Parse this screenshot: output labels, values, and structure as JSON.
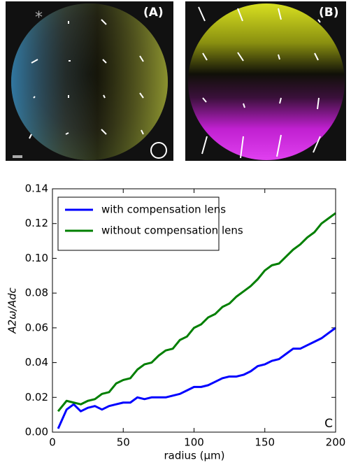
{
  "panels": [
    {
      "label": "(A)",
      "marker": "*"
    },
    {
      "label": "(B)"
    }
  ],
  "chart_data": {
    "type": "line",
    "xlabel": "radius (μm)",
    "ylabel": "A2ω/Adc",
    "corner_label": "C",
    "xlim": [
      0,
      200
    ],
    "ylim": [
      0,
      0.14
    ],
    "xticks": [
      0,
      50,
      100,
      150,
      200
    ],
    "yticks": [
      {
        "value": 0,
        "label": "0.00"
      },
      {
        "value": 0.02,
        "label": "0.02"
      },
      {
        "value": 0.04,
        "label": "0.04"
      },
      {
        "value": 0.06,
        "label": "0.06"
      },
      {
        "value": 0.08,
        "label": "0.08"
      },
      {
        "value": 0.1,
        "label": "0.10"
      },
      {
        "value": 0.12,
        "label": "0.12"
      },
      {
        "value": 0.14,
        "label": "0.14"
      }
    ],
    "legend": "upper left",
    "x": [
      4,
      10,
      15,
      20,
      25,
      30,
      35,
      40,
      45,
      50,
      55,
      60,
      65,
      70,
      75,
      80,
      85,
      90,
      95,
      100,
      105,
      110,
      115,
      120,
      125,
      130,
      135,
      140,
      145,
      150,
      155,
      160,
      165,
      170,
      175,
      180,
      185,
      190,
      195,
      200
    ],
    "series": [
      {
        "name": "with compensation lens",
        "color": "#0000ff",
        "values": [
          0.002,
          0.013,
          0.016,
          0.012,
          0.014,
          0.015,
          0.013,
          0.015,
          0.016,
          0.017,
          0.017,
          0.02,
          0.019,
          0.02,
          0.02,
          0.02,
          0.021,
          0.022,
          0.024,
          0.026,
          0.026,
          0.027,
          0.029,
          0.031,
          0.032,
          0.032,
          0.033,
          0.035,
          0.038,
          0.039,
          0.041,
          0.042,
          0.045,
          0.048,
          0.048,
          0.05,
          0.052,
          0.054,
          0.057,
          0.06
        ]
      },
      {
        "name": "without compensation lens",
        "color": "#007f00",
        "values": [
          0.012,
          0.018,
          0.017,
          0.016,
          0.018,
          0.019,
          0.022,
          0.023,
          0.028,
          0.03,
          0.031,
          0.036,
          0.039,
          0.04,
          0.044,
          0.047,
          0.048,
          0.053,
          0.055,
          0.06,
          0.062,
          0.066,
          0.068,
          0.072,
          0.074,
          0.078,
          0.081,
          0.084,
          0.088,
          0.093,
          0.096,
          0.097,
          0.101,
          0.105,
          0.108,
          0.112,
          0.115,
          0.12,
          0.123,
          0.126
        ]
      }
    ]
  }
}
